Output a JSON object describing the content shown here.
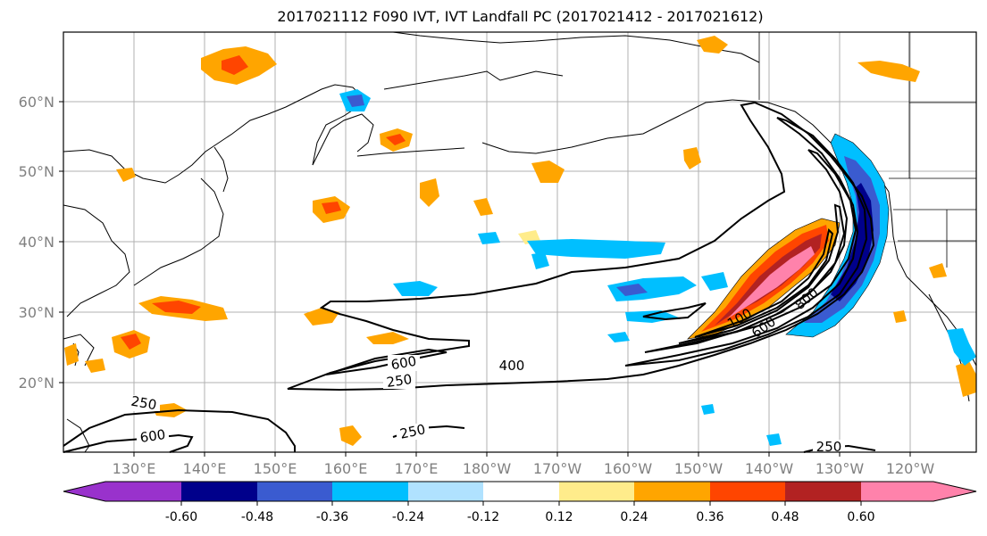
{
  "title": "2017021112 F090 IVT, IVT Landfall PC (2017021412 - 2017021612)",
  "lat_labels": [
    "60°N",
    "50°N",
    "40°N",
    "30°N",
    "20°N"
  ],
  "lon_labels": [
    "130°E",
    "140°E",
    "150°E",
    "160°E",
    "170°E",
    "180°W",
    "170°W",
    "160°W",
    "150°W",
    "140°W",
    "130°W",
    "120°W"
  ],
  "contour_labels": {
    "c1": "250",
    "c2": "600",
    "c3": "400",
    "c4": "600",
    "c5": "250",
    "c6": "250",
    "c7": "250",
    "c8": "100",
    "c9": "600",
    "c10": "800"
  },
  "colorbar": {
    "colors": [
      "#9932CC",
      "#00008B",
      "#3A5BD0",
      "#00BFFF",
      "#B0E2FF",
      "#FFFFFF",
      "#FFEC8B",
      "#FFA500",
      "#FF4500",
      "#B22222",
      "#FF82AB"
    ],
    "tick_labels": [
      "-0.60",
      "-0.48",
      "-0.36",
      "-0.24",
      "-0.12",
      "0.12",
      "0.24",
      "0.36",
      "0.48",
      "0.60"
    ]
  }
}
